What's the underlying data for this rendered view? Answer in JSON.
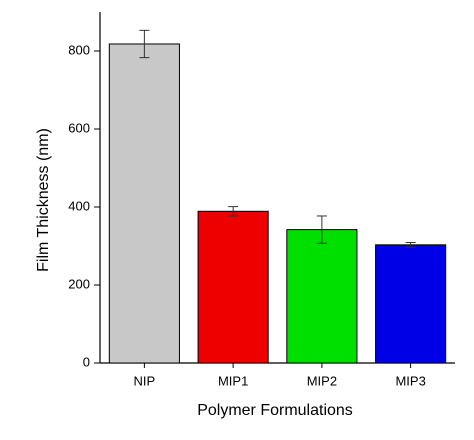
{
  "chart_data": {
    "type": "bar",
    "x_label": "Polymer Formulations",
    "y_label": "Film Thickness (nm)",
    "categories": [
      "NIP",
      "MIP1",
      "MIP2",
      "MIP3"
    ],
    "values": [
      818,
      389,
      342,
      303
    ],
    "errors": [
      35,
      12,
      35,
      6
    ],
    "colors": [
      "#c8c8c8",
      "#ee0000",
      "#00e000",
      "#0000e6"
    ],
    "ylim": [
      0,
      900
    ],
    "yticks": [
      0,
      200,
      400,
      600,
      800
    ]
  }
}
